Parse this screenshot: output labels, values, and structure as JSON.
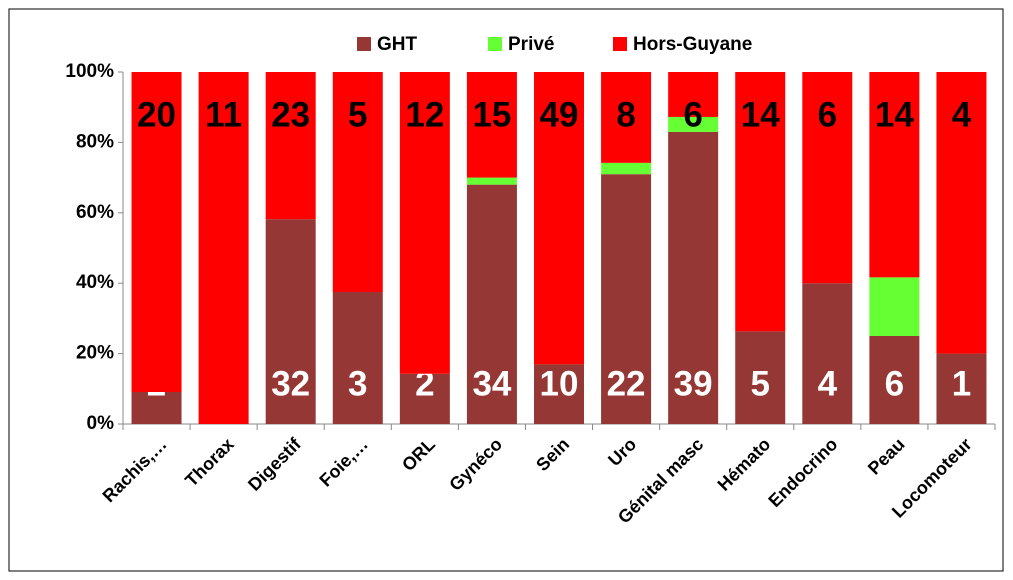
{
  "chart_data": {
    "type": "bar",
    "stacking": "percent",
    "categories": [
      "Rachis,…",
      "Thorax",
      "Digestif",
      "Foie,…",
      "ORL",
      "Gynéco",
      "Sein",
      "Uro",
      "Génital masc",
      "Hémato",
      "Endocrino",
      "Peau",
      "Locomoteur"
    ],
    "series": [
      {
        "name": "GHT",
        "color": "#953735",
        "labels": true,
        "values": [
          2,
          0,
          32,
          3,
          2,
          34,
          10,
          22,
          39,
          5,
          4,
          6,
          1
        ]
      },
      {
        "name": "Privé",
        "color": "#66ff33",
        "labels": false,
        "values": [
          0,
          0,
          0,
          0,
          0,
          1,
          0,
          1,
          2,
          0,
          0,
          4,
          0
        ]
      },
      {
        "name": "Hors-Guyane",
        "color": "#ff0000",
        "labels": true,
        "values": [
          20,
          11,
          23,
          5,
          12,
          15,
          49,
          8,
          6,
          14,
          6,
          14,
          4
        ]
      }
    ],
    "ylim": [
      0,
      100
    ],
    "yticks": [
      {
        "value": 0,
        "label": "0%"
      },
      {
        "value": 20,
        "label": "20%"
      },
      {
        "value": 40,
        "label": "40%"
      },
      {
        "value": 60,
        "label": "60%"
      },
      {
        "value": 80,
        "label": "80%"
      },
      {
        "value": 100,
        "label": "100%"
      }
    ],
    "legend": "top"
  }
}
